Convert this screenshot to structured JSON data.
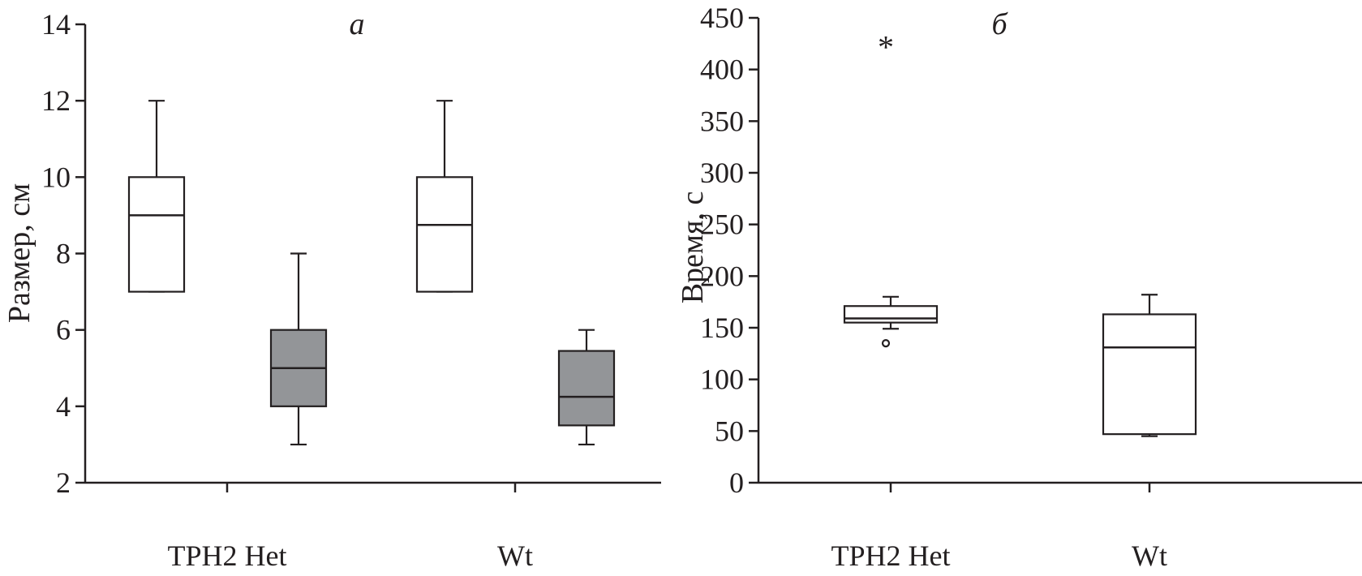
{
  "chart_data": [
    {
      "type": "box",
      "panel_label": "a",
      "ylabel": "Размер, см",
      "xlabel": "",
      "ylim": [
        2,
        14
      ],
      "yticks": [
        2,
        4,
        6,
        8,
        10,
        12,
        14
      ],
      "categories": [
        "TPH2 Het",
        "Wt"
      ],
      "box_colors": [
        "#ffffff",
        "#939598"
      ],
      "boxes": [
        {
          "category": "TPH2 Het",
          "variant": 0,
          "whisker_low": 7,
          "q1": 7,
          "median": 9,
          "q3": 10,
          "whisker_high": 12
        },
        {
          "category": "TPH2 Het",
          "variant": 1,
          "whisker_low": 3,
          "q1": 4,
          "median": 5,
          "q3": 6,
          "whisker_high": 8
        },
        {
          "category": "Wt",
          "variant": 0,
          "whisker_low": 7,
          "q1": 7,
          "median": 8.75,
          "q3": 10,
          "whisker_high": 12
        },
        {
          "category": "Wt",
          "variant": 1,
          "whisker_low": 3,
          "q1": 3.5,
          "median": 4.25,
          "q3": 5.45,
          "whisker_high": 6
        }
      ]
    },
    {
      "type": "box",
      "panel_label": "б",
      "ylabel": "Время, с",
      "xlabel": "",
      "ylim": [
        0,
        450
      ],
      "yticks": [
        0,
        50,
        100,
        150,
        200,
        250,
        300,
        350,
        400,
        450
      ],
      "categories": [
        "TPH2 Het",
        "Wt"
      ],
      "box_colors": [
        "#ffffff"
      ],
      "boxes": [
        {
          "category": "TPH2 Het",
          "variant": 0,
          "whisker_low": 149,
          "q1": 155,
          "median": 159,
          "q3": 171,
          "whisker_high": 180,
          "outliers": [
            135
          ]
        },
        {
          "category": "Wt",
          "variant": 0,
          "whisker_low": 45,
          "q1": 47,
          "median": 131,
          "q3": 163,
          "whisker_high": 182,
          "outliers": []
        }
      ],
      "significance_marks": [
        {
          "category": "TPH2 Het",
          "symbol": "*",
          "y": 427
        }
      ]
    }
  ]
}
